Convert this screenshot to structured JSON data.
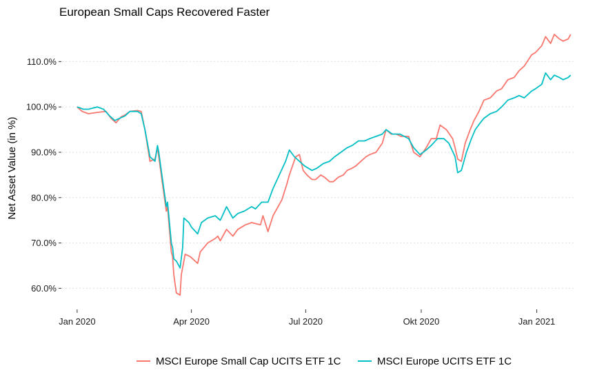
{
  "chart_data": {
    "type": "line",
    "title": "European Small Caps Recovered Faster",
    "xlabel": "",
    "ylabel": "Net Asset Value (in %)",
    "ylim": [
      55.5,
      117.5
    ],
    "xlim": [
      "2019-12-20",
      "2021-02-01"
    ],
    "grid": "horizontal, dotted",
    "legend": "bottom",
    "y_ticks": [
      {
        "value": 60,
        "label": "60.0%"
      },
      {
        "value": 70,
        "label": "70.0%"
      },
      {
        "value": 80,
        "label": "80.0%"
      },
      {
        "value": 90,
        "label": "90.0%"
      },
      {
        "value": 100,
        "label": "100.0%"
      },
      {
        "value": 110,
        "label": "110.0%"
      }
    ],
    "x_ticks": [
      {
        "date": "2020-01-01",
        "label": "Jan 2020"
      },
      {
        "date": "2020-04-01",
        "label": "Apr 2020"
      },
      {
        "date": "2020-07-01",
        "label": "Jul 2020"
      },
      {
        "date": "2020-10-01",
        "label": "Okt 2020"
      },
      {
        "date": "2021-01-01",
        "label": "Jan 2021"
      }
    ],
    "series": [
      {
        "name": "MSCI Europe Small Cap UCITS ETF 1C",
        "color": "#F8766D",
        "points": [
          [
            "2020-01-01",
            100
          ],
          [
            "2020-01-05",
            99
          ],
          [
            "2020-01-10",
            98.5
          ],
          [
            "2020-01-17",
            98.8
          ],
          [
            "2020-01-24",
            99
          ],
          [
            "2020-01-28",
            97.5
          ],
          [
            "2020-02-01",
            96.5
          ],
          [
            "2020-02-05",
            97.8
          ],
          [
            "2020-02-08",
            98.2
          ],
          [
            "2020-02-12",
            99
          ],
          [
            "2020-02-18",
            99.2
          ],
          [
            "2020-02-21",
            99
          ],
          [
            "2020-02-24",
            95
          ],
          [
            "2020-02-28",
            88
          ],
          [
            "2020-03-03",
            88.5
          ],
          [
            "2020-03-05",
            91
          ],
          [
            "2020-03-06",
            89
          ],
          [
            "2020-03-09",
            83
          ],
          [
            "2020-03-12",
            77
          ],
          [
            "2020-03-13",
            78
          ],
          [
            "2020-03-16",
            68
          ],
          [
            "2020-03-17",
            67
          ],
          [
            "2020-03-18",
            63
          ],
          [
            "2020-03-19",
            61
          ],
          [
            "2020-03-20",
            59
          ],
          [
            "2020-03-23",
            58.5
          ],
          [
            "2020-03-24",
            63
          ],
          [
            "2020-03-26",
            66
          ],
          [
            "2020-03-27",
            67.5
          ],
          [
            "2020-03-31",
            67
          ],
          [
            "2020-04-02",
            66.5
          ],
          [
            "2020-04-06",
            65.5
          ],
          [
            "2020-04-08",
            68
          ],
          [
            "2020-04-14",
            70
          ],
          [
            "2020-04-20",
            71
          ],
          [
            "2020-04-22",
            71.5
          ],
          [
            "2020-04-24",
            70.5
          ],
          [
            "2020-04-29",
            73
          ],
          [
            "2020-05-04",
            71.5
          ],
          [
            "2020-05-08",
            73
          ],
          [
            "2020-05-14",
            74
          ],
          [
            "2020-05-19",
            74.5
          ],
          [
            "2020-05-26",
            74
          ],
          [
            "2020-05-28",
            76
          ],
          [
            "2020-06-01",
            72.5
          ],
          [
            "2020-06-05",
            76
          ],
          [
            "2020-06-09",
            78
          ],
          [
            "2020-06-12",
            79.5
          ],
          [
            "2020-06-16",
            83
          ],
          [
            "2020-06-18",
            85
          ],
          [
            "2020-06-23",
            89
          ],
          [
            "2020-06-26",
            89.5
          ],
          [
            "2020-06-29",
            86
          ],
          [
            "2020-07-02",
            85
          ],
          [
            "2020-07-06",
            84
          ],
          [
            "2020-07-09",
            84
          ],
          [
            "2020-07-13",
            85
          ],
          [
            "2020-07-16",
            84.5
          ],
          [
            "2020-07-20",
            83.5
          ],
          [
            "2020-07-23",
            83.5
          ],
          [
            "2020-07-27",
            84.5
          ],
          [
            "2020-07-31",
            85
          ],
          [
            "2020-08-03",
            86
          ],
          [
            "2020-08-07",
            86.5
          ],
          [
            "2020-08-10",
            87
          ],
          [
            "2020-08-14",
            88
          ],
          [
            "2020-08-18",
            89
          ],
          [
            "2020-08-21",
            89.5
          ],
          [
            "2020-08-26",
            90
          ],
          [
            "2020-08-31",
            92
          ],
          [
            "2020-09-03",
            95
          ],
          [
            "2020-09-07",
            94
          ],
          [
            "2020-09-11",
            94
          ],
          [
            "2020-09-15",
            93.5
          ],
          [
            "2020-09-21",
            93.5
          ],
          [
            "2020-09-25",
            90
          ],
          [
            "2020-09-30",
            89
          ],
          [
            "2020-10-05",
            91
          ],
          [
            "2020-10-09",
            93
          ],
          [
            "2020-10-13",
            93
          ],
          [
            "2020-10-16",
            96
          ],
          [
            "2020-10-21",
            95
          ],
          [
            "2020-10-26",
            93
          ],
          [
            "2020-10-28",
            91
          ],
          [
            "2020-10-30",
            88.5
          ],
          [
            "2020-11-02",
            88
          ],
          [
            "2020-11-05",
            92
          ],
          [
            "2020-11-09",
            95
          ],
          [
            "2020-11-12",
            97
          ],
          [
            "2020-11-16",
            99
          ],
          [
            "2020-11-20",
            101.5
          ],
          [
            "2020-11-25",
            102
          ],
          [
            "2020-11-30",
            103.5
          ],
          [
            "2020-12-04",
            104
          ],
          [
            "2020-12-09",
            106
          ],
          [
            "2020-12-14",
            106.5
          ],
          [
            "2020-12-18",
            108
          ],
          [
            "2020-12-22",
            109
          ],
          [
            "2020-12-28",
            111.5
          ],
          [
            "2020-12-31",
            112
          ],
          [
            "2021-01-05",
            113.5
          ],
          [
            "2021-01-08",
            115.5
          ],
          [
            "2021-01-12",
            114
          ],
          [
            "2021-01-15",
            116
          ],
          [
            "2021-01-19",
            115
          ],
          [
            "2021-01-22",
            114.5
          ],
          [
            "2021-01-26",
            115
          ],
          [
            "2021-01-28",
            116
          ]
        ]
      },
      {
        "name": "MSCI Europe UCITS ETF 1C",
        "color": "#00BFC4",
        "points": [
          [
            "2020-01-01",
            100
          ],
          [
            "2020-01-06",
            99.5
          ],
          [
            "2020-01-10",
            99.5
          ],
          [
            "2020-01-17",
            100
          ],
          [
            "2020-01-22",
            99.5
          ],
          [
            "2020-01-27",
            98
          ],
          [
            "2020-01-31",
            97
          ],
          [
            "2020-02-04",
            97.5
          ],
          [
            "2020-02-08",
            98
          ],
          [
            "2020-02-12",
            99
          ],
          [
            "2020-02-18",
            99
          ],
          [
            "2020-02-21",
            98.5
          ],
          [
            "2020-02-24",
            95
          ],
          [
            "2020-02-28",
            89
          ],
          [
            "2020-03-03",
            88
          ],
          [
            "2020-03-05",
            91.5
          ],
          [
            "2020-03-06",
            90
          ],
          [
            "2020-03-09",
            84
          ],
          [
            "2020-03-12",
            78
          ],
          [
            "2020-03-13",
            79
          ],
          [
            "2020-03-16",
            70
          ],
          [
            "2020-03-17",
            69
          ],
          [
            "2020-03-18",
            66.5
          ],
          [
            "2020-03-20",
            66
          ],
          [
            "2020-03-23",
            64.5
          ],
          [
            "2020-03-25",
            69
          ],
          [
            "2020-03-26",
            75.5
          ],
          [
            "2020-03-30",
            74.5
          ],
          [
            "2020-04-01",
            73.5
          ],
          [
            "2020-04-06",
            72
          ],
          [
            "2020-04-09",
            74.5
          ],
          [
            "2020-04-14",
            75.5
          ],
          [
            "2020-04-20",
            76
          ],
          [
            "2020-04-24",
            75
          ],
          [
            "2020-04-29",
            78
          ],
          [
            "2020-05-04",
            75.5
          ],
          [
            "2020-05-08",
            76.5
          ],
          [
            "2020-05-13",
            77
          ],
          [
            "2020-05-19",
            78
          ],
          [
            "2020-05-22",
            77.5
          ],
          [
            "2020-05-27",
            79
          ],
          [
            "2020-06-01",
            79
          ],
          [
            "2020-06-05",
            82
          ],
          [
            "2020-06-10",
            85
          ],
          [
            "2020-06-15",
            88
          ],
          [
            "2020-06-18",
            90.5
          ],
          [
            "2020-06-22",
            89
          ],
          [
            "2020-06-26",
            88
          ],
          [
            "2020-06-30",
            87
          ],
          [
            "2020-07-06",
            86
          ],
          [
            "2020-07-10",
            86.5
          ],
          [
            "2020-07-15",
            87.5
          ],
          [
            "2020-07-20",
            88
          ],
          [
            "2020-07-24",
            89
          ],
          [
            "2020-07-29",
            90
          ],
          [
            "2020-08-03",
            91
          ],
          [
            "2020-08-07",
            91.5
          ],
          [
            "2020-08-12",
            92.5
          ],
          [
            "2020-08-17",
            92.5
          ],
          [
            "2020-08-21",
            93
          ],
          [
            "2020-08-26",
            93.5
          ],
          [
            "2020-08-31",
            94
          ],
          [
            "2020-09-03",
            95
          ],
          [
            "2020-09-08",
            94
          ],
          [
            "2020-09-14",
            94
          ],
          [
            "2020-09-21",
            93
          ],
          [
            "2020-09-25",
            91
          ],
          [
            "2020-09-30",
            89.5
          ],
          [
            "2020-10-05",
            90.5
          ],
          [
            "2020-10-09",
            91.5
          ],
          [
            "2020-10-14",
            93
          ],
          [
            "2020-10-19",
            93
          ],
          [
            "2020-10-23",
            92
          ],
          [
            "2020-10-28",
            89
          ],
          [
            "2020-10-30",
            85.5
          ],
          [
            "2020-11-02",
            86
          ],
          [
            "2020-11-06",
            90
          ],
          [
            "2020-11-10",
            93
          ],
          [
            "2020-11-13",
            95
          ],
          [
            "2020-11-17",
            96.5
          ],
          [
            "2020-11-20",
            97.5
          ],
          [
            "2020-11-25",
            98.5
          ],
          [
            "2020-11-30",
            99
          ],
          [
            "2020-12-04",
            100
          ],
          [
            "2020-12-09",
            101.5
          ],
          [
            "2020-12-14",
            102
          ],
          [
            "2020-12-18",
            102.5
          ],
          [
            "2020-12-22",
            102
          ],
          [
            "2020-12-28",
            103.5
          ],
          [
            "2020-12-31",
            104
          ],
          [
            "2021-01-05",
            105
          ],
          [
            "2021-01-08",
            107.5
          ],
          [
            "2021-01-12",
            106
          ],
          [
            "2021-01-15",
            107
          ],
          [
            "2021-01-19",
            106.5
          ],
          [
            "2021-01-22",
            106
          ],
          [
            "2021-01-26",
            106.5
          ],
          [
            "2021-01-28",
            107
          ]
        ]
      }
    ]
  }
}
